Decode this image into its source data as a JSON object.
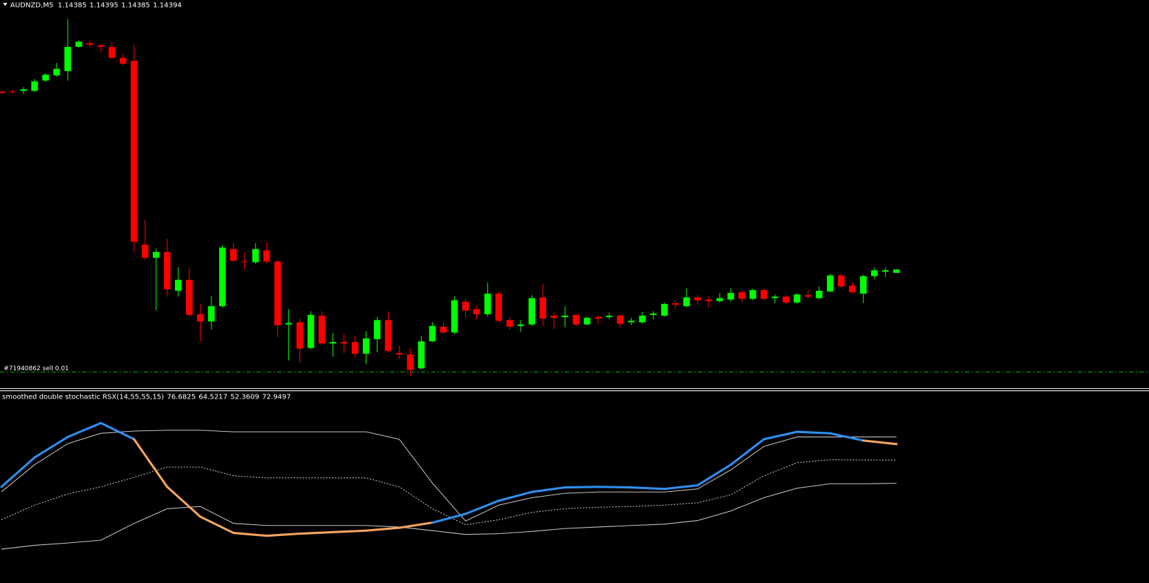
{
  "chart_data": [
    {
      "type": "candlestick",
      "title": "AUDNZD,M5",
      "header_prices": [
        1.14385,
        1.14395,
        1.14385,
        1.14394
      ],
      "up_color": "#00ff00",
      "down_color": "#ff0000",
      "xlim": [
        -0.13,
        103.85
      ],
      "ylim": [
        1.14074,
        1.1513
      ],
      "order": {
        "label": "#71940862 sell 0.01",
        "price": 1.14114,
        "color": "#00c000"
      },
      "candles": [
        [
          1.1488,
          1.14882,
          1.14874,
          1.14876
        ],
        [
          1.1488,
          1.14886,
          1.14874,
          1.14878
        ],
        [
          1.14882,
          1.14892,
          1.14874,
          1.14886
        ],
        [
          1.14882,
          1.14914,
          1.14878,
          1.14908
        ],
        [
          1.1491,
          1.1493,
          1.14906,
          1.14926
        ],
        [
          1.14924,
          1.14958,
          1.1492,
          1.14942
        ],
        [
          1.14936,
          1.15078,
          1.1491,
          1.15002
        ],
        [
          1.15002,
          1.1502,
          1.15,
          1.15016
        ],
        [
          1.15012,
          1.1502,
          1.15,
          1.15008
        ],
        [
          1.15006,
          1.1501,
          1.14988,
          1.15002
        ],
        [
          1.15002,
          1.15014,
          1.1497,
          1.14972
        ],
        [
          1.14972,
          1.14984,
          1.14952,
          1.14956
        ],
        [
          1.14964,
          1.15008,
          1.1444,
          1.1447
        ],
        [
          1.14462,
          1.1453,
          1.1442,
          1.14426
        ],
        [
          1.14426,
          1.1445,
          1.14282,
          1.14442
        ],
        [
          1.14442,
          1.14478,
          1.1432,
          1.1434
        ],
        [
          1.14336,
          1.144,
          1.1432,
          1.14366
        ],
        [
          1.14366,
          1.144,
          1.14266,
          1.1427
        ],
        [
          1.14272,
          1.143,
          1.14198,
          1.14252
        ],
        [
          1.14252,
          1.14322,
          1.1423,
          1.14294
        ],
        [
          1.14294,
          1.1446,
          1.1429,
          1.14454
        ],
        [
          1.1445,
          1.14468,
          1.14414,
          1.14418
        ],
        [
          1.14416,
          1.1444,
          1.14394,
          1.14414
        ],
        [
          1.14414,
          1.14466,
          1.1441,
          1.1445
        ],
        [
          1.14446,
          1.14468,
          1.1441,
          1.14416
        ],
        [
          1.14416,
          1.1442,
          1.1421,
          1.14242
        ],
        [
          1.14244,
          1.14286,
          1.14146,
          1.14248
        ],
        [
          1.1425,
          1.1426,
          1.1414,
          1.14178
        ],
        [
          1.1418,
          1.1428,
          1.14176,
          1.1427
        ],
        [
          1.14268,
          1.1428,
          1.14188,
          1.14192
        ],
        [
          1.14192,
          1.1422,
          1.14156,
          1.14196
        ],
        [
          1.14196,
          1.1422,
          1.14166,
          1.14192
        ],
        [
          1.14196,
          1.14214,
          1.14154,
          1.14164
        ],
        [
          1.14164,
          1.14226,
          1.14136,
          1.14206
        ],
        [
          1.14204,
          1.14264,
          1.14168,
          1.14256
        ],
        [
          1.14256,
          1.1428,
          1.14168,
          1.14172
        ],
        [
          1.14166,
          1.14186,
          1.1415,
          1.14162
        ],
        [
          1.14162,
          1.14178,
          1.14102,
          1.1412
        ],
        [
          1.14124,
          1.14212,
          1.14122,
          1.14198
        ],
        [
          1.14198,
          1.1425,
          1.14196,
          1.1424
        ],
        [
          1.14238,
          1.1425,
          1.14218,
          1.14222
        ],
        [
          1.14222,
          1.1432,
          1.14218,
          1.1431
        ],
        [
          1.14306,
          1.14314,
          1.14262,
          1.14282
        ],
        [
          1.14286,
          1.14294,
          1.14258,
          1.14272
        ],
        [
          1.14272,
          1.14358,
          1.14266,
          1.14328
        ],
        [
          1.14328,
          1.14334,
          1.1425,
          1.14254
        ],
        [
          1.14256,
          1.14264,
          1.1423,
          1.14238
        ],
        [
          1.1424,
          1.14256,
          1.14224,
          1.14244
        ],
        [
          1.14244,
          1.14324,
          1.1424,
          1.14316
        ],
        [
          1.14318,
          1.14354,
          1.1424,
          1.1426
        ],
        [
          1.14268,
          1.14278,
          1.14232,
          1.14262
        ],
        [
          1.14264,
          1.14294,
          1.14236,
          1.14268
        ],
        [
          1.1427,
          1.14274,
          1.1424,
          1.14244
        ],
        [
          1.14244,
          1.14266,
          1.14242,
          1.14262
        ],
        [
          1.14264,
          1.1427,
          1.14246,
          1.1426
        ],
        [
          1.14264,
          1.14276,
          1.14258,
          1.14268
        ],
        [
          1.14268,
          1.14272,
          1.14238,
          1.14246
        ],
        [
          1.1425,
          1.14262,
          1.14242,
          1.14254
        ],
        [
          1.1425,
          1.14278,
          1.14246,
          1.14268
        ],
        [
          1.1427,
          1.1428,
          1.14258,
          1.14274
        ],
        [
          1.14268,
          1.14304,
          1.14266,
          1.143
        ],
        [
          1.14302,
          1.1431,
          1.14288,
          1.14298
        ],
        [
          1.14294,
          1.14342,
          1.1429,
          1.14318
        ],
        [
          1.14318,
          1.14326,
          1.14298,
          1.1431
        ],
        [
          1.14312,
          1.1432,
          1.1429,
          1.14308
        ],
        [
          1.14308,
          1.1433,
          1.14304,
          1.14316
        ],
        [
          1.14312,
          1.14344,
          1.14306,
          1.1433
        ],
        [
          1.14332,
          1.14338,
          1.14304,
          1.14314
        ],
        [
          1.14314,
          1.14342,
          1.1431,
          1.14338
        ],
        [
          1.14338,
          1.14342,
          1.1431,
          1.14314
        ],
        [
          1.14316,
          1.14326,
          1.14302,
          1.1432
        ],
        [
          1.1432,
          1.14324,
          1.143,
          1.14304
        ],
        [
          1.14304,
          1.1433,
          1.143,
          1.14326
        ],
        [
          1.14324,
          1.14338,
          1.14314,
          1.1432
        ],
        [
          1.14316,
          1.14348,
          1.14312,
          1.14336
        ],
        [
          1.14334,
          1.14382,
          1.14332,
          1.14378
        ],
        [
          1.14378,
          1.14384,
          1.14344,
          1.14348
        ],
        [
          1.1435,
          1.1436,
          1.14328,
          1.14332
        ],
        [
          1.14328,
          1.1438,
          1.14302,
          1.14376
        ],
        [
          1.14376,
          1.144,
          1.14368,
          1.14392
        ],
        [
          1.14388,
          1.144,
          1.14374,
          1.14392
        ],
        [
          1.14385,
          1.14395,
          1.14385,
          1.14394
        ]
      ]
    },
    {
      "type": "line",
      "title": "smoothed double stochastic RSX(14,55,55,15)",
      "title_values": [
        76.6825,
        64.5217,
        52.3609,
        72.9497
      ],
      "xlim": [
        -0.13,
        103.85
      ],
      "ylim": [
        0,
        100
      ],
      "x": [
        0,
        3,
        6,
        9,
        12,
        15,
        18,
        21,
        24,
        27,
        30,
        33,
        36,
        39,
        42,
        45,
        48,
        51,
        54,
        57,
        60,
        63,
        66,
        69,
        72,
        75,
        78,
        81
      ],
      "series": [
        {
          "color": "#c8c8c8",
          "values": [
            47.9,
            62.1,
            73.2,
            78.6,
            79.8,
            80.2,
            80.2,
            79.4,
            79.4,
            79.4,
            79.4,
            79.4,
            75.5,
            52.5,
            32.5,
            40.9,
            44.8,
            47.1,
            47.8,
            47.8,
            47.8,
            49.4,
            59.4,
            71.7,
            76.7,
            76.7,
            76.7,
            76.6825
          ]
        },
        {
          "color": "#c8c8c8",
          "dashed": true,
          "values": [
            33.2,
            40.9,
            46.7,
            50.5,
            55.5,
            60.9,
            60.9,
            56.3,
            55.2,
            55.2,
            55.2,
            55.2,
            50.5,
            39.0,
            30.6,
            33.2,
            37.1,
            39.0,
            39.8,
            40.2,
            40.9,
            42.1,
            46.3,
            56.3,
            63.2,
            64.7,
            64.6,
            64.5217
          ]
        },
        {
          "color": "#c8c8c8",
          "values": [
            17.8,
            19.8,
            21.0,
            22.5,
            31.3,
            39.0,
            40.2,
            31.3,
            30.2,
            30.2,
            30.2,
            30.2,
            29.4,
            27.5,
            25.5,
            25.9,
            27.1,
            28.6,
            29.4,
            30.2,
            30.9,
            32.8,
            37.8,
            44.8,
            49.8,
            52.1,
            52.1,
            52.3609
          ]
        },
        {
          "color": "#2f8fef",
          "alt_color": "#f4a460",
          "width": 3,
          "values": [
            50.5,
            65.9,
            76.7,
            84.0,
            75.5,
            50.5,
            34.8,
            26.3,
            24.8,
            25.9,
            26.7,
            27.5,
            29.0,
            31.7,
            36.3,
            43.2,
            47.8,
            50.2,
            50.5,
            50.2,
            49.4,
            51.3,
            62.1,
            75.5,
            79.4,
            78.6,
            74.8,
            72.9497
          ]
        }
      ]
    }
  ]
}
